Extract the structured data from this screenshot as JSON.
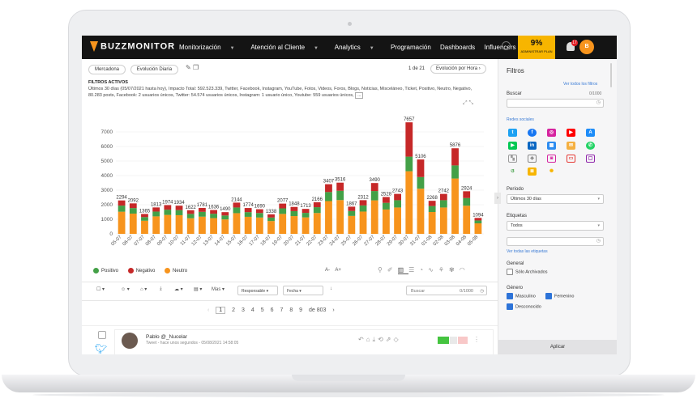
{
  "app": {
    "brand": "BUZZMONITOR"
  },
  "nav": {
    "items": [
      "Monitorización",
      "Atención al Cliente",
      "Analytics",
      "Programación",
      "Dashboards",
      "Influencers"
    ],
    "plan_percent": "9%",
    "plan_label": "ADMINISTRAR PLAN",
    "notifications": "17",
    "avatar_initial": "B"
  },
  "breadcrumbs": [
    "Mercadona",
    "Evolución Diaria"
  ],
  "pager_top": {
    "text": "1 de 21",
    "view": "Evolución por Hora"
  },
  "filters": {
    "title": "FILTROS ACTIVOS",
    "text": "Últimos 30 días (05/07/2021 hasta hoy), Impacto Total: 592.523.339, Twitter, Facebook, Instagram, YouTube, Fotos, Videos, Foros, Blogs, Noticias, Misceláneo, Ticket, Positivo, Neutro, Negativo, 80.283 posts, Facebook: 2 usuarios únicos, Twitter: 54.574 usuarios únicos, Instagram: 1 usuario único, Youtube: 559 usuarios únicos,"
  },
  "chart_data": {
    "type": "bar",
    "categories": [
      "05-07",
      "06-07",
      "07-07",
      "08-07",
      "09-07",
      "10-07",
      "11-07",
      "12-07",
      "13-07",
      "14-07",
      "15-07",
      "16-07",
      "17-07",
      "18-07",
      "19-07",
      "20-07",
      "21-07",
      "22-07",
      "23-07",
      "24-07",
      "25-07",
      "26-07",
      "27-07",
      "28-07",
      "29-07",
      "30-07",
      "31-07",
      "01-08",
      "02-08",
      "03-08",
      "04-08",
      "05-08"
    ],
    "totals": [
      2294,
      2092,
      1365,
      1813,
      1974,
      1934,
      1622,
      1781,
      1636,
      1490,
      2144,
      1774,
      1690,
      1338,
      2077,
      1848,
      1713,
      2166,
      3407,
      3516,
      1867,
      2312,
      3490,
      2528,
      2743,
      7657,
      5106,
      2268,
      2742,
      5876,
      2924,
      1094
    ],
    "series": [
      {
        "name": "Neutro",
        "color": "#f7941d",
        "values": [
          1520,
          1390,
          900,
          1200,
          1300,
          1280,
          1070,
          1180,
          1080,
          990,
          1420,
          1170,
          1120,
          880,
          1370,
          1220,
          1130,
          1430,
          2250,
          2320,
          1230,
          1530,
          2300,
          1670,
          1810,
          4300,
          3100,
          1500,
          1810,
          3800,
          1930,
          720
        ]
      },
      {
        "name": "Positivo",
        "color": "#43a047",
        "values": [
          420,
          380,
          250,
          330,
          360,
          350,
          300,
          330,
          300,
          270,
          390,
          320,
          310,
          240,
          380,
          340,
          310,
          400,
          620,
          640,
          340,
          420,
          640,
          460,
          500,
          1000,
          800,
          410,
          500,
          900,
          530,
          200
        ]
      },
      {
        "name": "Negativo",
        "color": "#c62828",
        "values": [
          354,
          322,
          215,
          283,
          314,
          304,
          252,
          271,
          256,
          230,
          334,
          284,
          260,
          218,
          327,
          288,
          273,
          336,
          537,
          556,
          297,
          362,
          550,
          398,
          433,
          2357,
          1206,
          358,
          432,
          1176,
          464,
          174
        ]
      }
    ],
    "ylim": [
      0,
      8000
    ],
    "yticks": [
      "0",
      "1000",
      "2000",
      "3000",
      "4000",
      "5000",
      "6000",
      "7000"
    ],
    "legend": [
      "Positivo",
      "Negativo",
      "Neutro"
    ],
    "legend_position": "bottom-left"
  },
  "font_controls": {
    "minus": "A-",
    "plus": "A+"
  },
  "toolbar": {
    "more": "Mas",
    "sort": "Responsable",
    "date": "Fecha",
    "search_placeholder": "Buscar",
    "search_count": "0/1000"
  },
  "pager": {
    "pages": [
      "1",
      "2",
      "3",
      "4",
      "5",
      "6",
      "7",
      "8",
      "9"
    ],
    "of": "de 803"
  },
  "post": {
    "author": "Pablo @_Nucelar",
    "meta": "Tweet - hace unos segundos - 05/08/2021 14:58:05"
  },
  "sidebar": {
    "title": "Filtros",
    "see_all_filters": "Ver todos los filtros",
    "search_label": "Buscar",
    "search_count": "0/1000",
    "networks_label": "Redes sociales",
    "period_label": "Período",
    "period_value": "Últimos 30 días",
    "tags_label": "Etiquetas",
    "tags_value": "Todos",
    "see_all_tags": "Ver todas las etiquetas",
    "general_label": "General",
    "archived_label": "Sólo Archivados",
    "gender_label": "Género",
    "male": "Masculino",
    "female": "Femenino",
    "unknown": "Desconocido",
    "apply": "Aplicar"
  }
}
